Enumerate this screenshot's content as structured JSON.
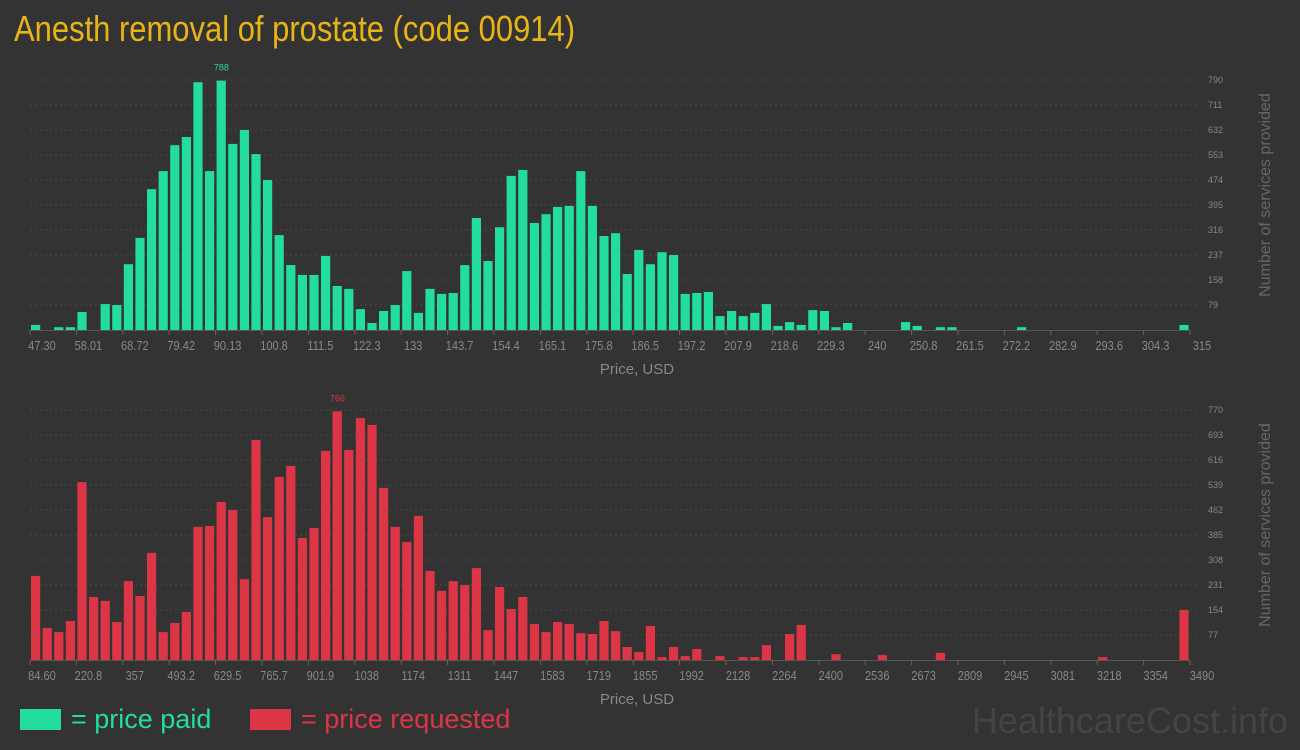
{
  "title": "Anesth removal of prostate (code 00914)",
  "colors": {
    "background": "#333333",
    "paid": "#22dd9c",
    "requested": "#dc3545",
    "title": "#e8b514",
    "axis_text": "#888888"
  },
  "legend": {
    "paid_label": "= price paid",
    "requested_label": "= price requested"
  },
  "watermark": "HealthcareCost.info",
  "chart_data": [
    {
      "type": "bar",
      "series": [
        {
          "name": "price paid",
          "color": "#22dd9c"
        }
      ],
      "xlabel": "Price, USD",
      "ylabel": "Number of services provided",
      "x_tick_labels": [
        "47.30",
        "58.01",
        "68.72",
        "79.42",
        "90.13",
        "100.8",
        "111.5",
        "122.3",
        "133",
        "143.7",
        "154.4",
        "165.1",
        "175.8",
        "186.5",
        "197.2",
        "207.9",
        "218.6",
        "229.3",
        "240",
        "250.8",
        "261.5",
        "272.2",
        "282.9",
        "293.6",
        "304.3",
        "315"
      ],
      "y_ticks": [
        79,
        158,
        237,
        316,
        395,
        474,
        553,
        632,
        711,
        790
      ],
      "ylim": [
        0,
        790
      ],
      "xlim": [
        47.3,
        315
      ],
      "grid": true,
      "peak_label": "788",
      "peak_index": 16,
      "values": [
        16,
        0,
        9,
        9,
        57,
        0,
        82,
        79,
        208,
        291,
        445,
        502,
        584,
        610,
        783,
        502,
        788,
        588,
        632,
        556,
        474,
        300,
        205,
        174,
        174,
        234,
        139,
        130,
        66,
        22,
        60,
        79,
        186,
        54,
        130,
        114,
        117,
        205,
        354,
        218,
        325,
        487,
        506,
        338,
        366,
        389,
        392,
        502,
        392,
        297,
        306,
        177,
        253,
        208,
        246,
        237,
        114,
        117,
        120,
        44,
        60,
        44,
        54,
        82,
        13,
        25,
        16,
        63,
        60,
        9,
        22,
        0,
        0,
        0,
        0,
        25,
        13,
        0,
        9,
        9,
        0,
        0,
        0,
        0,
        0,
        9,
        0,
        0,
        0,
        0,
        0,
        0,
        0,
        0,
        0,
        0,
        0,
        0,
        0,
        16
      ]
    },
    {
      "type": "bar",
      "series": [
        {
          "name": "price requested",
          "color": "#dc3545"
        }
      ],
      "xlabel": "Price, USD",
      "ylabel": "Number of services provided",
      "x_tick_labels": [
        "84.60",
        "220.8",
        "357",
        "493.2",
        "629.5",
        "765.7",
        "901.9",
        "1038",
        "1174",
        "1311",
        "1447",
        "1583",
        "1719",
        "1855",
        "1992",
        "2128",
        "2264",
        "2400",
        "2536",
        "2673",
        "2809",
        "2945",
        "3081",
        "3218",
        "3354",
        "3490"
      ],
      "y_ticks": [
        77,
        154,
        231,
        308,
        385,
        462,
        539,
        616,
        693,
        770
      ],
      "ylim": [
        0,
        770
      ],
      "xlim": [
        84.6,
        3490
      ],
      "grid": true,
      "peak_label": "766",
      "peak_index": 26,
      "values": [
        259,
        99,
        86,
        120,
        548,
        194,
        182,
        117,
        243,
        197,
        330,
        86,
        114,
        148,
        410,
        413,
        487,
        462,
        249,
        678,
        440,
        564,
        598,
        376,
        407,
        644,
        766,
        647,
        745,
        724,
        530,
        410,
        363,
        444,
        274,
        213,
        243,
        231,
        283,
        92,
        225,
        157,
        194,
        111,
        86,
        117,
        111,
        83,
        80,
        120,
        89,
        40,
        25,
        105,
        9,
        40,
        12,
        34,
        0,
        12,
        0,
        9,
        9,
        46,
        0,
        80,
        108,
        0,
        0,
        18,
        0,
        0,
        0,
        15,
        0,
        0,
        0,
        0,
        22,
        0,
        0,
        0,
        0,
        0,
        0,
        0,
        0,
        0,
        0,
        0,
        0,
        0,
        9,
        0,
        0,
        0,
        0,
        0,
        0,
        154
      ]
    }
  ]
}
